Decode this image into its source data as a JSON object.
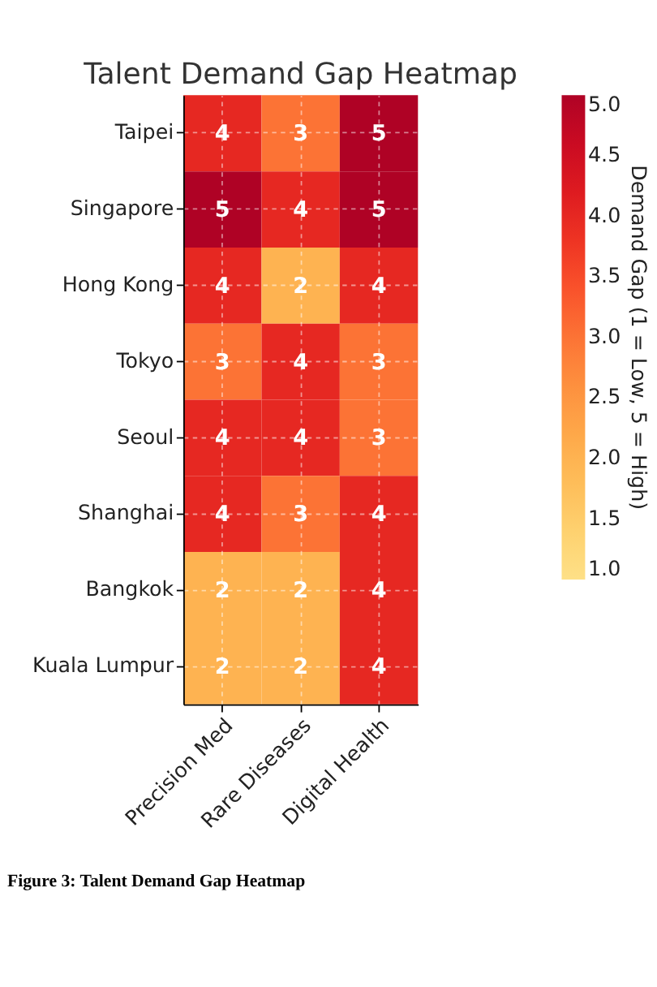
{
  "chart_data": {
    "type": "heatmap",
    "title": "Talent Demand Gap Heatmap",
    "categories": [
      "Precision Med",
      "Rare Diseases",
      "Digital Health"
    ],
    "y_categories": [
      "Taipei",
      "Singapore",
      "Hong Kong",
      "Tokyo",
      "Seoul",
      "Shanghai",
      "Bangkok",
      "Kuala Lumpur"
    ],
    "cells": [
      [
        4,
        3,
        5
      ],
      [
        5,
        4,
        5
      ],
      [
        4,
        2,
        4
      ],
      [
        3,
        4,
        3
      ],
      [
        4,
        4,
        3
      ],
      [
        4,
        3,
        4
      ],
      [
        2,
        2,
        4
      ],
      [
        2,
        2,
        4
      ]
    ],
    "data_labels": true,
    "clabel": "Demand Gap (1 = Low, 5 = High)",
    "clim": [
      1,
      5
    ],
    "cticks": [
      {
        "value": 1,
        "label": "1.0"
      },
      {
        "value": 1.5,
        "label": "1.5"
      },
      {
        "value": 2,
        "label": "2.0"
      },
      {
        "value": 2.5,
        "label": "2.5"
      },
      {
        "value": 3,
        "label": "3.0"
      },
      {
        "value": 3.5,
        "label": "3.5"
      },
      {
        "value": 4,
        "label": "4.0"
      },
      {
        "value": 4.5,
        "label": "4.5"
      },
      {
        "value": 5,
        "label": "5.0"
      }
    ],
    "grid": true,
    "annotations": [
      "Figure 3: Talent Demand Gap Heatmap"
    ]
  }
}
